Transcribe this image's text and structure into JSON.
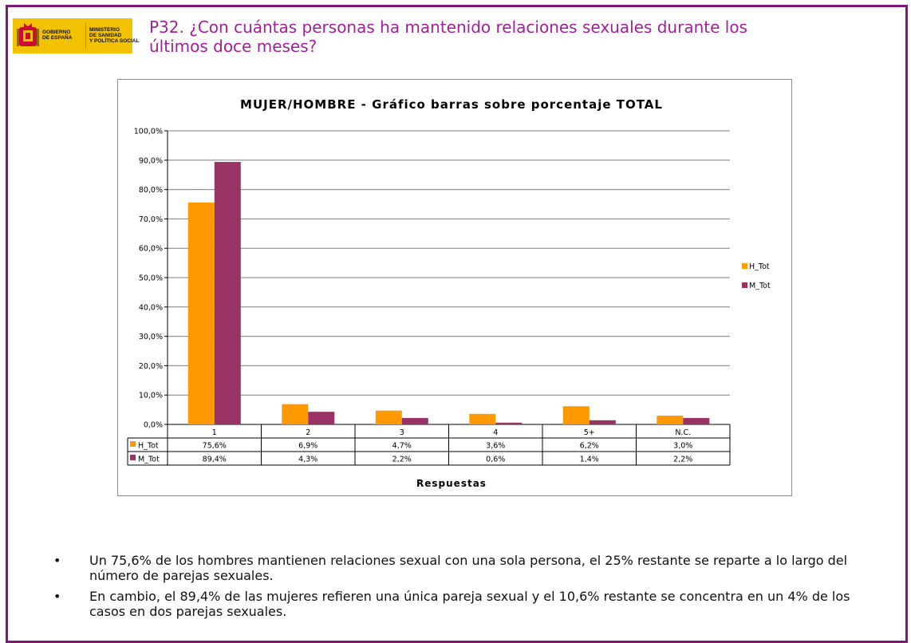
{
  "header": {
    "logo_left": "GOBIERNO\nDE ESPAÑA",
    "logo_right": "MINISTERIO\nDE SANIDAD\nY POLÍTICA SOCIAL",
    "title_line1": "P32. ¿Con cuántas personas ha mantenido relaciones sexuales durante los",
    "title_line2": "últimos doce meses?"
  },
  "colors": {
    "frame": "#7b1a78",
    "title": "#a01f9b",
    "h_tot": "#ff9900",
    "m_tot": "#993366"
  },
  "chart_data": {
    "type": "bar",
    "title": "MUJER/HOMBRE - Gráfico barras sobre porcentaje TOTAL",
    "xlabel": "Respuestas",
    "ylabel": "",
    "ylim": [
      0,
      100
    ],
    "yticks": [
      "100,0%",
      "90,0%",
      "80,0%",
      "70,0%",
      "60,0%",
      "50,0%",
      "40,0%",
      "30,0%",
      "20,0%",
      "10,0%",
      "0,0%"
    ],
    "categories": [
      "1",
      "2",
      "3",
      "4",
      "5+",
      "N.C."
    ],
    "grid": true,
    "legend_position": "right",
    "series": [
      {
        "name": "H_Tot",
        "color": "#ff9900",
        "values": [
          75.6,
          6.9,
          4.7,
          3.6,
          6.2,
          3.0
        ],
        "labels": [
          "75,6%",
          "6,9%",
          "4,7%",
          "3,6%",
          "6,2%",
          "3,0%"
        ]
      },
      {
        "name": "M_Tot",
        "color": "#993366",
        "values": [
          89.4,
          4.3,
          2.2,
          0.6,
          1.4,
          2.2
        ],
        "labels": [
          "89,4%",
          "4,3%",
          "2,2%",
          "0,6%",
          "1,4%",
          "2,2%"
        ]
      }
    ]
  },
  "bullets": [
    {
      "marker": "•",
      "text": "Un 75,6% de los hombres mantienen relaciones sexual con una sola persona, el 25% restante se reparte a lo largo del número de parejas sexuales."
    },
    {
      "marker": "•",
      "text": "En cambio, el 89,4% de las mujeres refieren una única pareja sexual y el 10,6% restante se concentra en un 4% de los casos en dos parejas sexuales."
    }
  ]
}
